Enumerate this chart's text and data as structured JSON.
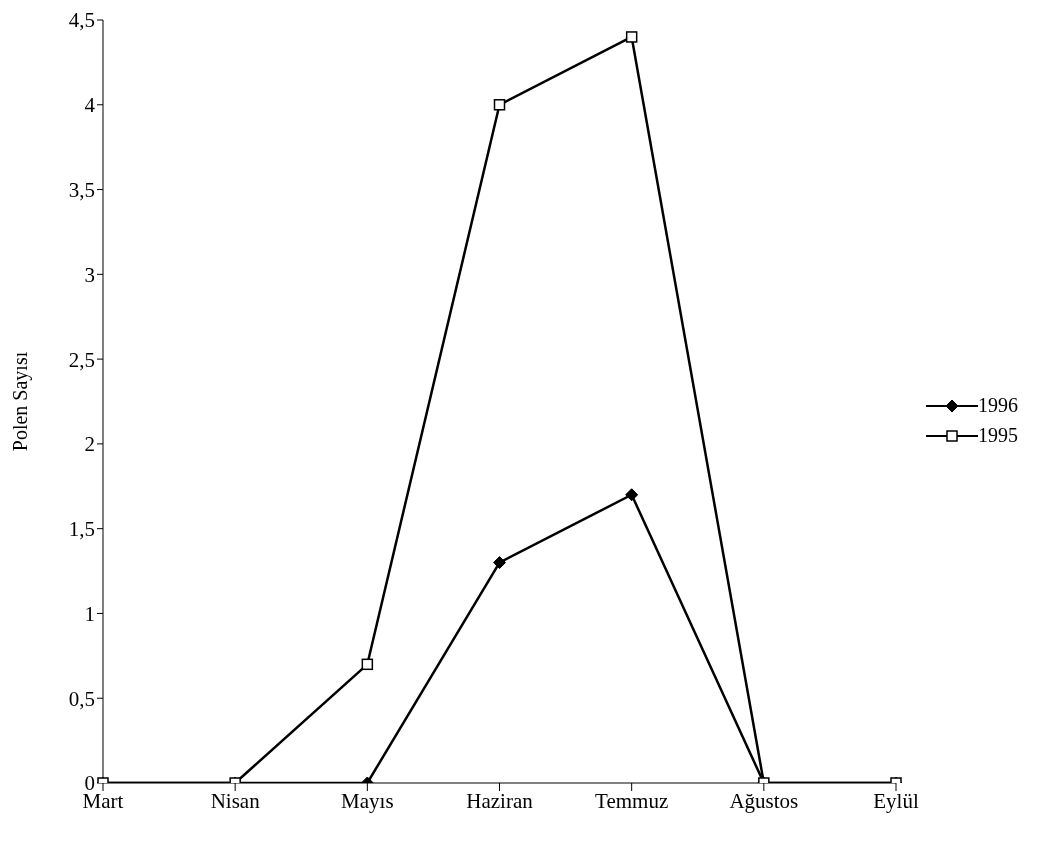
{
  "chart_data": {
    "type": "line",
    "ylabel": "Polen Sayısı",
    "categories": [
      "Mart",
      "Nisan",
      "Mayıs",
      "Haziran",
      "Temmuz",
      "Ağustos",
      "Eylül"
    ],
    "series": [
      {
        "name": "1996",
        "color": "#000000",
        "marker": "diamond",
        "values": [
          0,
          0,
          0,
          1.3,
          1.7,
          0,
          0
        ]
      },
      {
        "name": "1995",
        "color": "#000000",
        "marker": "square",
        "values": [
          0,
          0,
          0.7,
          4,
          4.4,
          0,
          0
        ]
      }
    ],
    "ylim": [
      0,
      4.5
    ],
    "yticks": [
      0,
      {
        "value": 0.5,
        "label": "0,5"
      },
      1,
      {
        "value": 1.5,
        "label": "1,5"
      },
      2,
      {
        "value": 2.5,
        "label": "2,5"
      },
      3,
      {
        "value": 3.5,
        "label": "3,5"
      },
      4,
      {
        "value": 4.5,
        "label": "4,5"
      }
    ],
    "grid": false,
    "legend": "right",
    "line_style": "solid"
  }
}
